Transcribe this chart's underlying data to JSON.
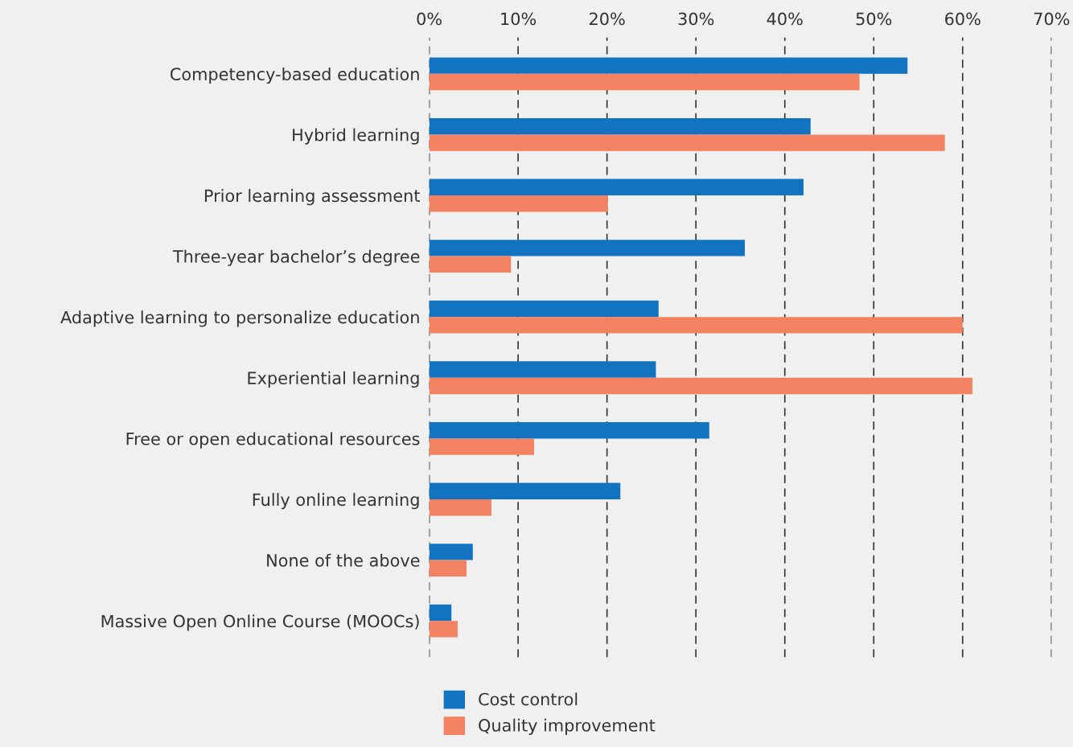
{
  "chart_data": {
    "type": "bar",
    "orientation": "horizontal",
    "categories": [
      "Competency-based education",
      "Hybrid learning",
      "Prior learning assessment",
      "Three-year bachelor’s degree",
      "Adaptive learning to personalize education",
      "Experiential learning",
      "Free or open educational resources",
      "Fully online learning",
      "None of the above",
      "Massive Open Online Course (MOOCs)"
    ],
    "series": [
      {
        "name": "Cost control",
        "color": "#1273c0",
        "values": [
          53.8,
          42.9,
          42.1,
          35.5,
          25.8,
          25.5,
          31.5,
          21.5,
          4.9,
          2.5
        ]
      },
      {
        "name": "Quality improvement",
        "color": "#f28262",
        "values": [
          48.4,
          58.0,
          20.1,
          9.2,
          60.0,
          61.1,
          11.8,
          7.0,
          4.2,
          3.2
        ]
      }
    ],
    "xlim": [
      0,
      70
    ],
    "xticks": [
      {
        "value": 0,
        "label": "0%"
      },
      {
        "value": 10,
        "label": "10%"
      },
      {
        "value": 20,
        "label": "20%"
      },
      {
        "value": 30,
        "label": "30%"
      },
      {
        "value": 40,
        "label": "40%"
      },
      {
        "value": 50,
        "label": "50%"
      },
      {
        "value": 60,
        "label": "60%"
      },
      {
        "value": 70,
        "label": "70%"
      }
    ],
    "grid": "x",
    "line_style": "dashed",
    "legend": "bottom"
  }
}
